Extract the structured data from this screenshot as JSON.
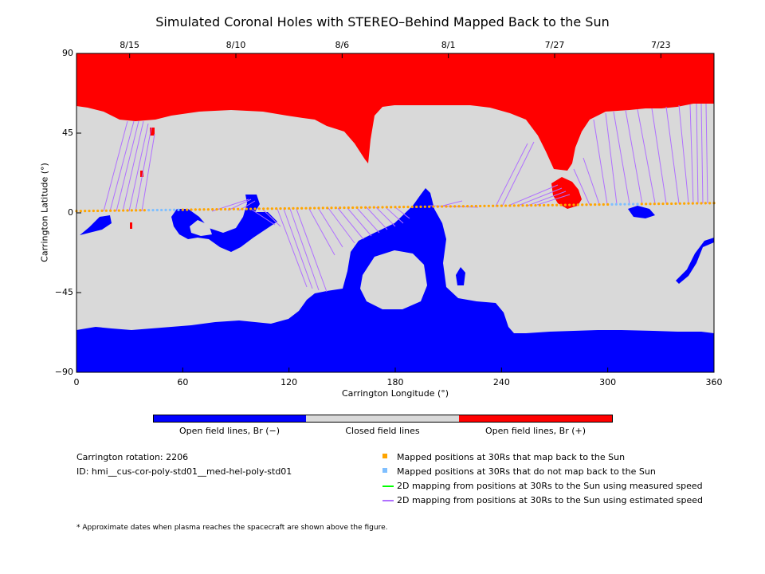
{
  "title": "Simulated Coronal Holes with STEREO–Behind Mapped Back to the Sun",
  "map": {
    "x_axis": {
      "label": "Carrington Longitude (°)",
      "range": [
        0,
        360
      ],
      "ticks": [
        "0",
        "60",
        "120",
        "180",
        "240",
        "300",
        "360"
      ]
    },
    "y_axis": {
      "label": "Carrington Latitude (°)",
      "range": [
        -90,
        90
      ],
      "ticks": [
        "90",
        "45",
        "0",
        "−45",
        "−90"
      ]
    },
    "top_axis": {
      "date_ticks": [
        {
          "label": "8/15",
          "longitude": 30
        },
        {
          "label": "8/10",
          "longitude": 90
        },
        {
          "label": "8/6",
          "longitude": 150
        },
        {
          "label": "8/1",
          "longitude": 210
        },
        {
          "label": "7/27",
          "longitude": 270
        },
        {
          "label": "7/23",
          "longitude": 330
        }
      ]
    },
    "colors": {
      "open_negative": "#0000ff",
      "closed": "#d9d9d9",
      "open_positive": "#ff0000",
      "mapped_back": "#ffa500",
      "not_mapped": "#7fbfff",
      "measured_speed": "#00ff00",
      "estimated_speed": "#b070ff"
    }
  },
  "colorbar": {
    "labels": [
      "Open field lines, Br (−)",
      "Closed field lines",
      "Open field lines, Br (+)"
    ]
  },
  "info": {
    "rotation": "Carrington rotation: 2206",
    "id": "ID: hmi__cus-cor-poly-std01__med-hel-poly-std01"
  },
  "legend": [
    {
      "symbol": "square",
      "color": "#ffa500",
      "label": "Mapped positions at 30Rs that map back to the Sun"
    },
    {
      "symbol": "square",
      "color": "#7fbfff",
      "label": "Mapped positions at 30Rs that do not map back to the Sun"
    },
    {
      "symbol": "line",
      "color": "#00ff00",
      "label": "2D mapping from positions at 30Rs to the Sun using measured speed"
    },
    {
      "symbol": "line",
      "color": "#b070ff",
      "label": "2D mapping from positions at 30Rs to the Sun using estimated speed"
    }
  ],
  "footnote": "* Approximate dates when plasma reaches the spacecraft are shown above the figure."
}
